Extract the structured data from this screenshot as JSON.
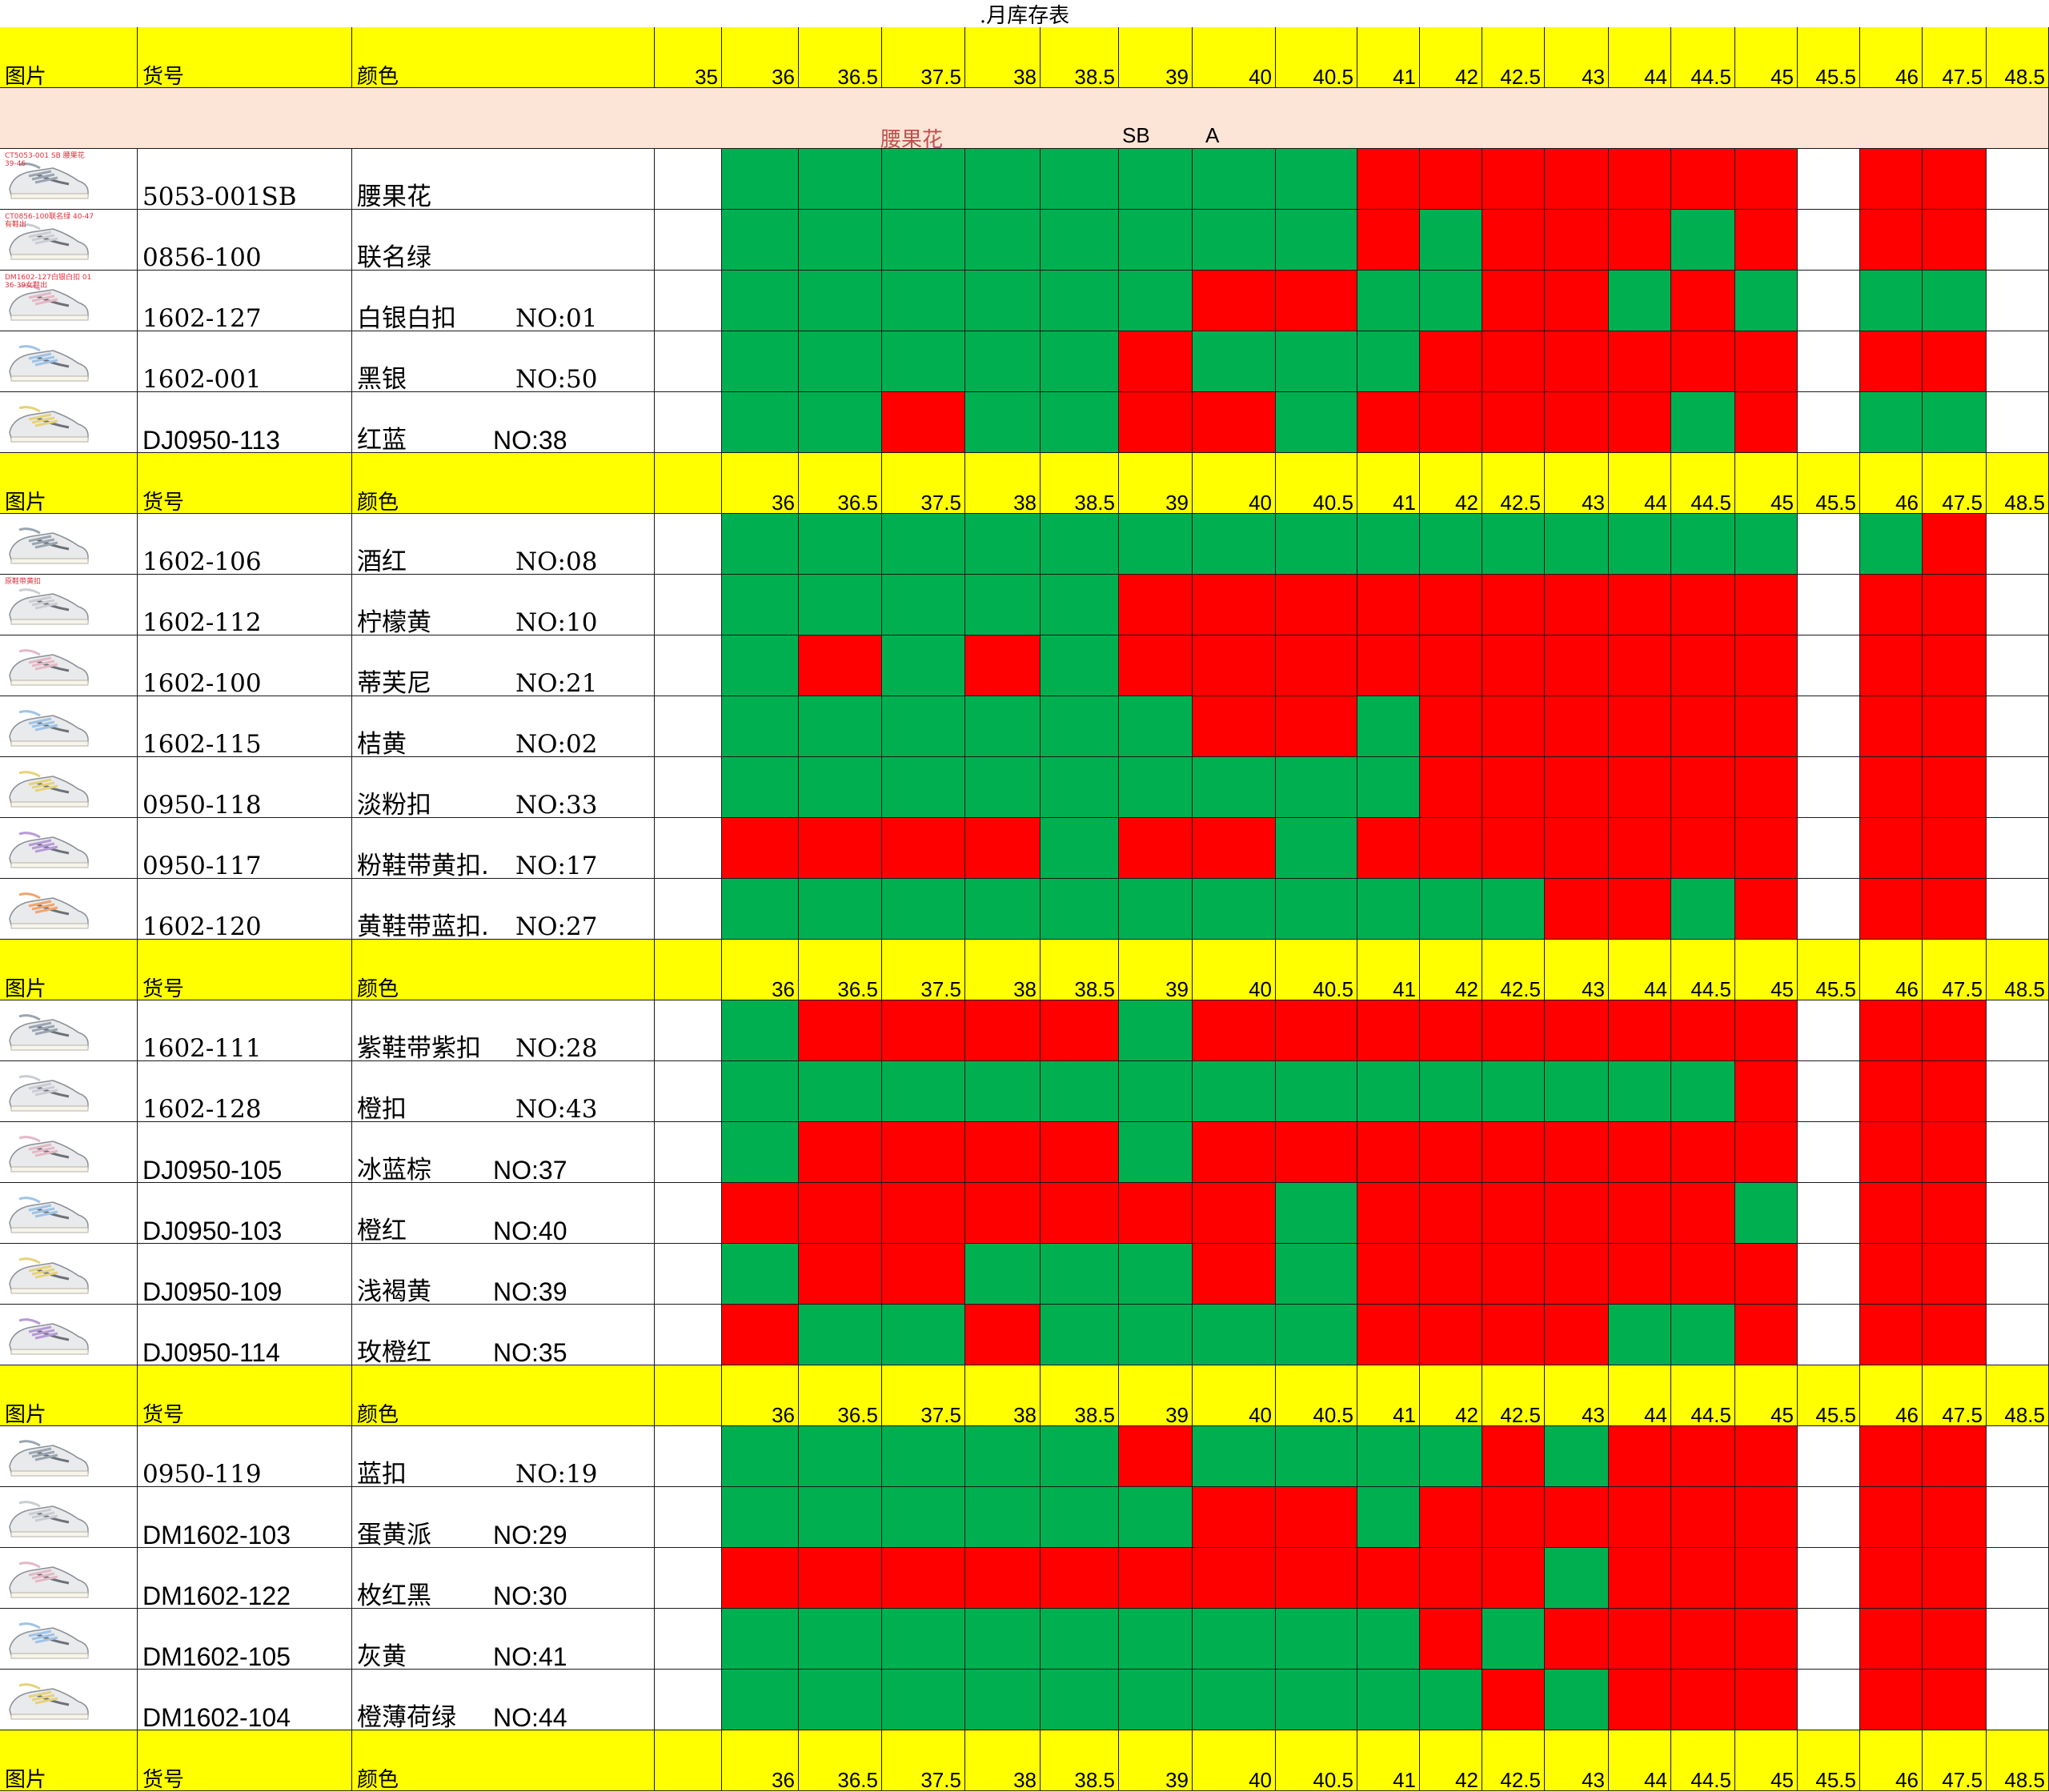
{
  "title": ".月库存表",
  "header": {
    "picture": "图片",
    "code": "货号",
    "color": "颜色",
    "sizes_first": [
      "35",
      "36",
      "36.5",
      "37.5",
      "38",
      "38.5",
      "39",
      "40",
      "40.5",
      "41",
      "42",
      "42.5",
      "43",
      "44",
      "44.5",
      "45",
      "45.5",
      "46",
      "47.5",
      "48.5"
    ],
    "sizes": [
      "",
      "36",
      "36.5",
      "37.5",
      "38",
      "38.5",
      "39",
      "40",
      "40.5",
      "41",
      "42",
      "42.5",
      "43",
      "44",
      "44.5",
      "45",
      "45.5",
      "46",
      "47.5",
      "48.5"
    ]
  },
  "band": {
    "name": "腰果花",
    "sb": "SB",
    "a": "A"
  },
  "legend_colors": {
    "in_stock": "#00b050",
    "sold_out": "#ff0000",
    "header": "#ffff00",
    "band": "#fce4d6"
  },
  "sections": [
    {
      "rows": [
        {
          "code": "5053-001SB",
          "color": "腰果花",
          "no": "",
          "thumb": "CT5053-001 SB 腰果花 39-46",
          "cells": "WGGGGGGGGRRRRRRRWRRW"
        },
        {
          "code": "0856-100",
          "color": "联名绿",
          "no": "",
          "thumb": "CT0856-100联名绿 40-47有鞋出",
          "cells": "WGGGGGGGGRGRRRGRWRRW"
        },
        {
          "code": "1602-127",
          "color": "白银白扣",
          "no": "NO:01",
          "thumb": "DM1602-127白银白扣 01 36-39女鞋出",
          "cells": "WGGGGGGRRGGRRGRGWGGW"
        },
        {
          "code": "1602-001",
          "color": "黑银",
          "no": "NO:50",
          "cells": "WGGGGGRGGGRRRRRRWRRW"
        },
        {
          "code": "DJ0950-113",
          "color": "红蓝",
          "no": "NO:38",
          "cells": "WGGRGGRRGRRRRRGRWGGW"
        }
      ]
    },
    {
      "rows": [
        {
          "code": "1602-106",
          "color": "酒红",
          "no": "NO:08",
          "cells": "WGGGGGGGGGGGGGGGWGRW"
        },
        {
          "code": "1602-112",
          "color": "柠檬黄",
          "no": "NO:10",
          "thumb": "原鞋带黄扣",
          "cells": "WGGGGGRRRRRRRRRRWRRW"
        },
        {
          "code": "1602-100",
          "color": "蒂芙尼",
          "no": "NO:21",
          "cells": "WGRGRGRRRRRRRRRRWRRW"
        },
        {
          "code": "1602-115",
          "color": "桔黄",
          "no": "NO:02",
          "cells": "WGGGGGGRRGRRRRRRWRRW"
        },
        {
          "code": "0950-118",
          "color": "淡粉扣",
          "no": "NO:33",
          "cells": "WGGGGGGGGGRRRRRRWRRW"
        },
        {
          "code": "0950-117",
          "color": "粉鞋带黄扣.",
          "no": "NO:17",
          "cells": "WRRRRGRRGRRRRRRRWRRW"
        },
        {
          "code": "1602-120",
          "color": "黄鞋带蓝扣.",
          "no": "NO:27",
          "cells": "WGGGGGGGGGGGRRGRWRRW"
        }
      ]
    },
    {
      "rows": [
        {
          "code": "1602-111",
          "color": "紫鞋带紫扣",
          "no": "NO:28",
          "cells": "WGRRRRGRRRRRRRRRWRRW"
        },
        {
          "code": "1602-128",
          "color": "橙扣",
          "no": "NO:43",
          "cells": "WGGGGGGGGGGGGGGRWRRW"
        },
        {
          "code": "DJ0950-105",
          "color": "冰蓝棕",
          "no": "NO:37",
          "cells": "WGRRRRGRRRRRRRRRWRRW"
        },
        {
          "code": "DJ0950-103",
          "color": "橙红",
          "no": "NO:40",
          "cells": "WRRRRRRRGRRRRRRGWRRW"
        },
        {
          "code": "DJ0950-109",
          "color": "浅褐黄",
          "no": "NO:39",
          "cells": "WGRRGGGRGRRRRRRRWRRW"
        },
        {
          "code": "DJ0950-114",
          "color": "玫橙红",
          "no": "NO:35",
          "cells": "WRGGRGGGGRRRRGGRWRRW"
        }
      ]
    },
    {
      "rows": [
        {
          "code": "0950-119",
          "color": "蓝扣",
          "no": "NO:19",
          "cells": "WGGGGGRGGGGRGRRRWRRW"
        },
        {
          "code": "DM1602-103",
          "color": "蛋黄派",
          "no": "NO:29",
          "cells": "WGGGGGGRRGRRRRRRWRRW"
        },
        {
          "code": "DM1602-122",
          "color": "枚红黑",
          "no": "NO:30",
          "cells": "WRRRRRRRRRRRGRRRWRRW"
        },
        {
          "code": "DM1602-105",
          "color": "灰黄",
          "no": "NO:41",
          "cells": "WGGGGGGGGGRGRRRRWRRW"
        },
        {
          "code": "DM1602-104",
          "color": "橙薄荷绿",
          "no": "NO:44",
          "cells": "WGGGGGGGGGGRGRRRWRRW"
        }
      ]
    }
  ]
}
